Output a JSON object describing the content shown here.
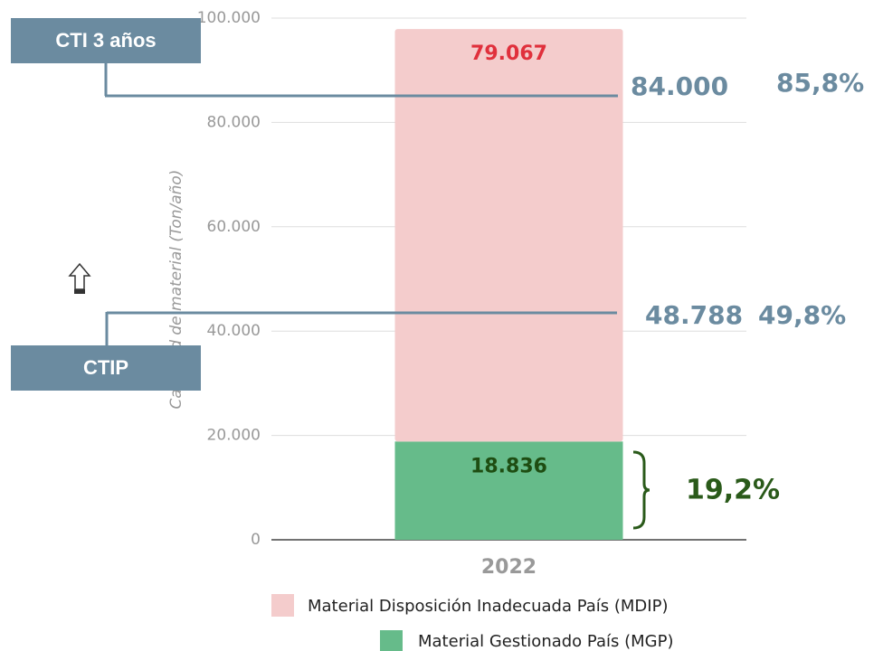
{
  "chart_data": {
    "type": "stacked_bar",
    "y_axis_label": "Cantidad de material (Ton/año)",
    "categories": [
      "2022"
    ],
    "series": [
      {
        "name": "Material Gestionado País (MGP)",
        "color": "#66bb8a",
        "label_color": "#1e4d12",
        "values": [
          18836
        ],
        "value_labels": [
          "18.836"
        ]
      },
      {
        "name": "Material Disposición Inadecuada País (MDIP)",
        "color": "#f4cccc",
        "label_color": "#e0303c",
        "values": [
          79067
        ],
        "value_labels": [
          "79.067"
        ]
      }
    ],
    "ylim": [
      0,
      100000
    ],
    "yticks": [
      {
        "value": 0,
        "label": "0"
      },
      {
        "value": 20000,
        "label": "20.000"
      },
      {
        "value": 40000,
        "label": "40.000"
      },
      {
        "value": 60000,
        "label": "60.000"
      },
      {
        "value": 80000,
        "label": "80.000"
      },
      {
        "value": 100000,
        "label": "100.000"
      }
    ],
    "grid": true,
    "annotations": [
      {
        "label": "CTI 3 años",
        "amount": "84.000",
        "share": "85,8%"
      },
      {
        "label": "CTIP",
        "amount": "48.788",
        "share": "49,8%"
      }
    ],
    "mgp_share": "19,2%"
  }
}
